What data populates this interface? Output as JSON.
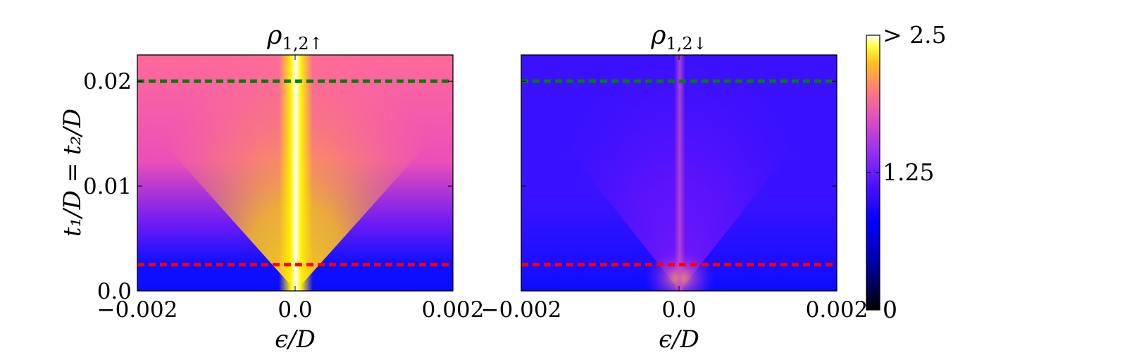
{
  "chart_data": {
    "type": "heatmap",
    "panels": [
      {
        "title_sym": "ρ",
        "title_sub": "1,2↑",
        "x_ticks": [
          "−0.002",
          "0.0",
          "0.002"
        ],
        "x_values": [
          -0.002,
          0.0,
          0.002
        ],
        "xlabel": "ϵ/D",
        "xlim": [
          -0.002,
          0.002
        ],
        "ylim": [
          0.0,
          0.0225
        ],
        "y_ticks": [
          "0.0",
          "0.01",
          "0.02"
        ],
        "y_values": [
          0.0,
          0.01,
          0.02
        ]
      },
      {
        "title_sym": "ρ",
        "title_sub": "1,2↓",
        "x_ticks": [
          "−0.002",
          "0.0",
          "0.002"
        ],
        "x_values": [
          -0.002,
          0.0,
          0.002
        ],
        "xlabel": "ϵ/D",
        "xlim": [
          -0.002,
          0.002
        ],
        "ylim": [
          0.0,
          0.0225
        ],
        "y_ticks": [],
        "y_values": [
          0.0,
          0.01,
          0.02
        ]
      }
    ],
    "ylabel": "t₁/D = t₂/D",
    "reference_lines": [
      {
        "y": 0.02,
        "color": "#008000",
        "style": "dashed"
      },
      {
        "y": 0.0025,
        "color": "#ff0000",
        "style": "dashed"
      }
    ],
    "colorbar": {
      "colormap": "gnuplot2",
      "range": [
        0,
        2.5
      ],
      "ticks": [
        {
          "value": 2.5,
          "label": "> 2.5"
        },
        {
          "value": 1.25,
          "label": "1.25"
        },
        {
          "value": 0,
          "label": "0"
        }
      ]
    }
  }
}
